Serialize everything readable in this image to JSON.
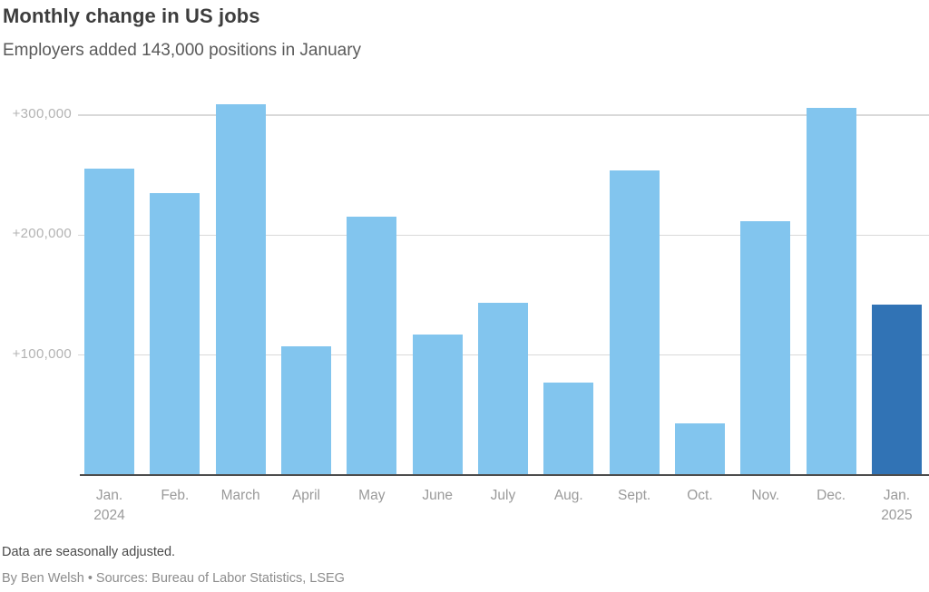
{
  "header": {
    "title": "Monthly change in US jobs",
    "subtitle": "Employers added 143,000 positions in January"
  },
  "chart_data": {
    "type": "bar",
    "title": "Monthly change in US jobs",
    "subtitle": "Employers added 143,000 positions in January",
    "categories": [
      {
        "label": "Jan.",
        "sublabel": "2024"
      },
      {
        "label": "Feb.",
        "sublabel": ""
      },
      {
        "label": "March",
        "sublabel": ""
      },
      {
        "label": "April",
        "sublabel": ""
      },
      {
        "label": "May",
        "sublabel": ""
      },
      {
        "label": "June",
        "sublabel": ""
      },
      {
        "label": "July",
        "sublabel": ""
      },
      {
        "label": "Aug.",
        "sublabel": ""
      },
      {
        "label": "Sept.",
        "sublabel": ""
      },
      {
        "label": "Oct.",
        "sublabel": ""
      },
      {
        "label": "Nov.",
        "sublabel": ""
      },
      {
        "label": "Dec.",
        "sublabel": ""
      },
      {
        "label": "Jan.",
        "sublabel": "2025"
      }
    ],
    "values": [
      256000,
      236000,
      310000,
      108000,
      216000,
      118000,
      144000,
      78000,
      255000,
      44000,
      212000,
      307000,
      143000
    ],
    "highlight_index": 12,
    "y_ticks": [
      {
        "label": "+100,000",
        "value": 100000
      },
      {
        "label": "+200,000",
        "value": 200000
      },
      {
        "label": "+300,000",
        "value": 300000
      }
    ],
    "ylim": [
      0,
      300000
    ],
    "grid": "horizontal",
    "legend": "none",
    "xlabel": "",
    "ylabel": "",
    "colors": {
      "bar": "#82c5ee",
      "highlight": "#3173b5",
      "gridline": "#d9d9d9",
      "axis_line": "#4d4d4d"
    }
  },
  "footer": {
    "note": "Data are seasonally adjusted.",
    "byline": "By Ben Welsh • Sources: Bureau of Labor Statistics, LSEG"
  }
}
